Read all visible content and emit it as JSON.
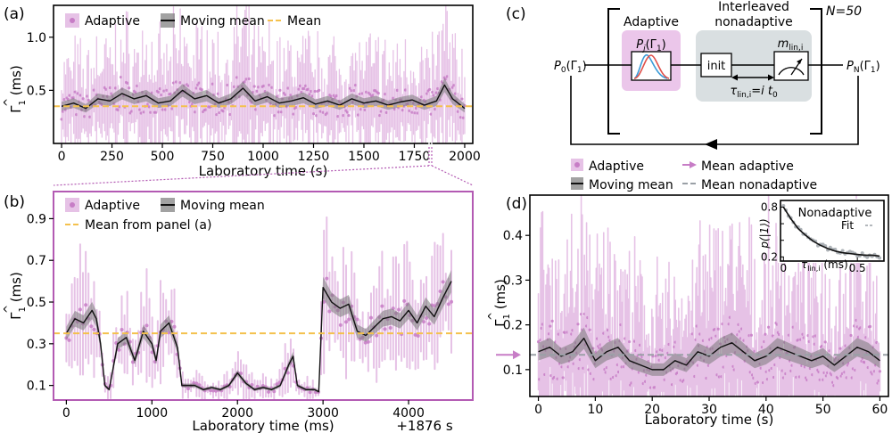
{
  "chart_data": [
    {
      "panel": "(a)",
      "type": "line",
      "xlabel": "Laboratory time (s)",
      "ylabel": "Γ̂₁ (ms)",
      "xlim": [
        -40,
        2040
      ],
      "ylim": [
        0.0,
        1.3
      ],
      "xticks": [
        0,
        250,
        500,
        750,
        1000,
        1250,
        1500,
        1750,
        2000
      ],
      "xtick_labels": [
        "0",
        "250",
        "500",
        "750",
        "1000",
        "1250",
        "1500",
        "1750",
        "2000"
      ],
      "yticks": [
        0.5,
        1.0
      ],
      "ytick_labels": [
        "0.5",
        "1.0"
      ],
      "legend": [
        "Adaptive",
        "Moving mean",
        "Mean"
      ],
      "legend_position": "top-left",
      "mean_value": 0.35,
      "series": [
        {
          "name": "Moving mean",
          "x": [
            0,
            60,
            120,
            180,
            240,
            300,
            360,
            420,
            480,
            540,
            600,
            660,
            720,
            780,
            840,
            900,
            960,
            1020,
            1080,
            1140,
            1200,
            1260,
            1320,
            1380,
            1440,
            1500,
            1560,
            1620,
            1680,
            1740,
            1800,
            1860,
            1900,
            1940,
            2000
          ],
          "values": [
            0.35,
            0.38,
            0.33,
            0.42,
            0.4,
            0.47,
            0.42,
            0.45,
            0.38,
            0.4,
            0.5,
            0.42,
            0.45,
            0.38,
            0.42,
            0.52,
            0.4,
            0.44,
            0.38,
            0.4,
            0.43,
            0.37,
            0.4,
            0.36,
            0.42,
            0.38,
            0.4,
            0.36,
            0.39,
            0.41,
            0.36,
            0.4,
            0.55,
            0.42,
            0.33
          ]
        }
      ]
    },
    {
      "panel": "(b)",
      "type": "line",
      "xlabel": "Laboratory time (ms)",
      "ylabel": "Γ̂₁ (ms)",
      "offset_label": "+1876 s",
      "xlim": [
        -150,
        4750
      ],
      "ylim": [
        0.03,
        1.03
      ],
      "xticks": [
        0,
        1000,
        2000,
        3000,
        4000
      ],
      "xtick_labels": [
        "0",
        "1000",
        "2000",
        "3000",
        "4000"
      ],
      "yticks": [
        0.1,
        0.3,
        0.5,
        0.7,
        0.9
      ],
      "ytick_labels": [
        "0.1",
        "0.3",
        "0.5",
        "0.7",
        "0.9"
      ],
      "legend": [
        "Adaptive",
        "Moving mean",
        "Mean from panel (a)"
      ],
      "legend_position": "top-left",
      "mean_value": 0.35,
      "series": [
        {
          "name": "Moving mean",
          "x": [
            0,
            100,
            200,
            300,
            350,
            400,
            450,
            500,
            600,
            700,
            800,
            900,
            1000,
            1050,
            1100,
            1200,
            1300,
            1350,
            1400,
            1500,
            1600,
            1700,
            1800,
            1900,
            2000,
            2100,
            2200,
            2300,
            2400,
            2500,
            2600,
            2650,
            2700,
            2800,
            2900,
            2950,
            3000,
            3100,
            3200,
            3300,
            3400,
            3500,
            3600,
            3700,
            3800,
            3900,
            4000,
            4100,
            4200,
            4300,
            4400,
            4500
          ],
          "values": [
            0.35,
            0.42,
            0.4,
            0.46,
            0.42,
            0.3,
            0.1,
            0.08,
            0.3,
            0.33,
            0.22,
            0.36,
            0.3,
            0.22,
            0.36,
            0.4,
            0.28,
            0.1,
            0.1,
            0.1,
            0.08,
            0.09,
            0.08,
            0.1,
            0.16,
            0.11,
            0.08,
            0.09,
            0.08,
            0.1,
            0.2,
            0.24,
            0.1,
            0.08,
            0.08,
            0.07,
            0.57,
            0.5,
            0.47,
            0.49,
            0.36,
            0.34,
            0.38,
            0.42,
            0.43,
            0.41,
            0.46,
            0.4,
            0.48,
            0.43,
            0.52,
            0.6
          ]
        }
      ]
    },
    {
      "panel": "(d)",
      "type": "line",
      "xlabel": "Laboratory time (s)",
      "ylabel": "Γ̂₁ (ms)",
      "xlim": [
        -1.5,
        61.5
      ],
      "ylim": [
        0.04,
        0.49
      ],
      "xticks": [
        0,
        10,
        20,
        30,
        40,
        50,
        60
      ],
      "xtick_labels": [
        "0",
        "10",
        "20",
        "30",
        "40",
        "50",
        "60"
      ],
      "yticks": [
        0.1,
        0.2,
        0.3,
        0.4
      ],
      "ytick_labels": [
        "0.1",
        "0.2",
        "0.3",
        "0.4"
      ],
      "legend": [
        "Adaptive",
        "Moving mean",
        "Mean adaptive",
        "Mean nonadaptive"
      ],
      "legend_position": "top-outside",
      "mean_adaptive": 0.133,
      "mean_nonadaptive": 0.133,
      "series": [
        {
          "name": "Moving mean",
          "x": [
            0,
            2,
            4,
            6,
            8,
            10,
            12,
            14,
            16,
            18,
            20,
            22,
            24,
            26,
            28,
            30,
            32,
            34,
            36,
            38,
            40,
            42,
            44,
            46,
            48,
            50,
            52,
            54,
            56,
            58,
            60
          ],
          "values": [
            0.14,
            0.15,
            0.13,
            0.14,
            0.17,
            0.12,
            0.14,
            0.15,
            0.12,
            0.11,
            0.1,
            0.1,
            0.12,
            0.11,
            0.14,
            0.13,
            0.15,
            0.16,
            0.14,
            0.12,
            0.13,
            0.15,
            0.14,
            0.13,
            0.12,
            0.13,
            0.11,
            0.13,
            0.15,
            0.14,
            0.12
          ]
        }
      ]
    },
    {
      "panel": "(d) inset",
      "type": "line",
      "title": "Nonadaptive",
      "xlabel": "τlin,i (ms)",
      "ylabel": "p(|1⟩)",
      "xlim": [
        -0.02,
        0.68
      ],
      "ylim": [
        0.15,
        0.88
      ],
      "xticks": [
        0,
        0.5
      ],
      "xtick_labels": [
        "0",
        "0.5"
      ],
      "yticks": [
        0.2,
        0.4,
        0.6,
        0.8
      ],
      "ytick_labels": [
        "0.2",
        "0.4",
        "0.6",
        "0.8"
      ],
      "legend": [
        "Fit"
      ],
      "series": [
        {
          "name": "Fit",
          "x": [
            0,
            0.05,
            0.1,
            0.15,
            0.2,
            0.25,
            0.3,
            0.35,
            0.4,
            0.45,
            0.5,
            0.55,
            0.6,
            0.65
          ],
          "values": [
            0.8,
            0.66,
            0.54,
            0.46,
            0.39,
            0.34,
            0.3,
            0.27,
            0.25,
            0.24,
            0.23,
            0.22,
            0.22,
            0.21
          ]
        }
      ]
    }
  ],
  "panels": {
    "a": "(a)",
    "b": "(b)",
    "c": "(c)",
    "d": "(d)"
  },
  "legends": {
    "a": {
      "adaptive": "Adaptive",
      "moving": "Moving mean",
      "mean": "Mean"
    },
    "b": {
      "adaptive": "Adaptive",
      "moving": "Moving mean",
      "mean": "Mean from panel (a)"
    },
    "d": {
      "adaptive": "Adaptive",
      "moving": "Moving mean",
      "mean_adaptive": "Mean adaptive",
      "mean_nonadaptive": "Mean nonadaptive"
    }
  },
  "axes": {
    "a_x": "Laboratory time (s)",
    "b_x": "Laboratory time (ms)",
    "b_offset": "+1876 s",
    "d_x": "Laboratory time (s)",
    "y_sym": "Γ",
    "y_hat": "^",
    "y_sub": "1",
    "y_unit": " (ms)"
  },
  "inset": {
    "title": "Nonadaptive",
    "fit": "Fit",
    "y_label": "p(|1⟩)",
    "x_sym": "τ",
    "x_sub": "lin,i",
    "x_unit": " (ms)"
  },
  "schematic": {
    "repeat": "N=50",
    "adaptive_title": "Adaptive",
    "interleaved_1": "Interleaved",
    "interleaved_2": "nonadaptive",
    "pj_P": "P",
    "pj_sub": "j",
    "pj_arg": "(Γ",
    "pj_arg_sub": "1",
    "pj_close": ")",
    "p0": "P",
    "p0_sub": "0",
    "p0_arg": "(Γ",
    "p0_arg_sub": "1",
    "p0_close": ")",
    "pn": "P",
    "pn_sub": "N",
    "pn_arg": "(Γ",
    "pn_arg_sub": "1",
    "pn_close": ")",
    "init": "init",
    "m": "m",
    "m_sub": "lin,i",
    "tau": "τ",
    "tau_sub": "lin,i",
    "tau_eq": "=i t",
    "tau_eq_sub": "0"
  },
  "colors": {
    "adaptive": "#c77dc6",
    "adaptive_light": "#e6c2e6",
    "moving": "#111111",
    "band": "#7a7a7a",
    "mean": "#f4c14d",
    "nonadaptive_mean": "#9aa0a6",
    "adaptive_box": "#ebc6ea",
    "nonadaptive_box": "#d9dfe1",
    "curve_red": "#e0504a",
    "curve_blue": "#3a9bd8"
  }
}
